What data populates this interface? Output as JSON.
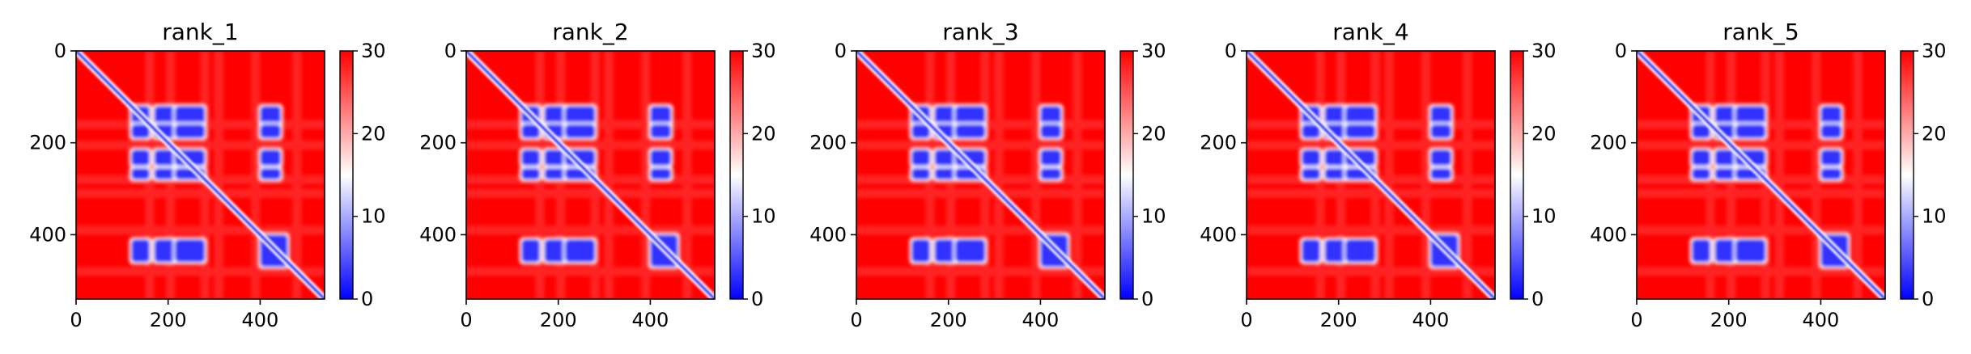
{
  "chart_data": {
    "type": "heatmap",
    "description_of_content": "",
    "colormap": [
      "#0000ff",
      "#ffffff",
      "#ff0000"
    ],
    "vmin": 0,
    "vmax": 30,
    "matrix_size": 540,
    "xticks": [
      0,
      200,
      400
    ],
    "yticks": [
      0,
      200,
      400
    ],
    "colorbar_ticks": [
      0,
      10,
      20,
      30
    ],
    "panels": [
      {
        "title": "rank_1"
      },
      {
        "title": "rank_2"
      },
      {
        "title": "rank_3"
      },
      {
        "title": "rank_4"
      },
      {
        "title": "rank_5"
      }
    ],
    "low_value_blocks": [
      {
        "x": [
          120,
          160
        ],
        "y": [
          120,
          160
        ]
      },
      {
        "x": [
          170,
          215
        ],
        "y": [
          120,
          160
        ]
      },
      {
        "x": [
          215,
          280
        ],
        "y": [
          120,
          160
        ]
      },
      {
        "x": [
          400,
          445
        ],
        "y": [
          120,
          160
        ]
      },
      {
        "x": [
          120,
          160
        ],
        "y": [
          160,
          190
        ]
      },
      {
        "x": [
          170,
          215
        ],
        "y": [
          160,
          190
        ]
      },
      {
        "x": [
          215,
          280
        ],
        "y": [
          160,
          190
        ]
      },
      {
        "x": [
          400,
          445
        ],
        "y": [
          160,
          190
        ]
      },
      {
        "x": [
          120,
          160
        ],
        "y": [
          215,
          250
        ]
      },
      {
        "x": [
          170,
          215
        ],
        "y": [
          215,
          250
        ]
      },
      {
        "x": [
          215,
          280
        ],
        "y": [
          215,
          250
        ]
      },
      {
        "x": [
          400,
          445
        ],
        "y": [
          215,
          250
        ]
      },
      {
        "x": [
          120,
          160
        ],
        "y": [
          255,
          280
        ]
      },
      {
        "x": [
          170,
          215
        ],
        "y": [
          255,
          280
        ]
      },
      {
        "x": [
          215,
          280
        ],
        "y": [
          255,
          280
        ]
      },
      {
        "x": [
          400,
          445
        ],
        "y": [
          255,
          280
        ]
      },
      {
        "x": [
          120,
          160
        ],
        "y": [
          410,
          460
        ]
      },
      {
        "x": [
          170,
          215
        ],
        "y": [
          410,
          460
        ]
      },
      {
        "x": [
          215,
          280
        ],
        "y": [
          410,
          460
        ]
      },
      {
        "x": [
          400,
          460
        ],
        "y": [
          400,
          470
        ]
      }
    ],
    "diagonal_value": 0,
    "background_value": 30
  }
}
